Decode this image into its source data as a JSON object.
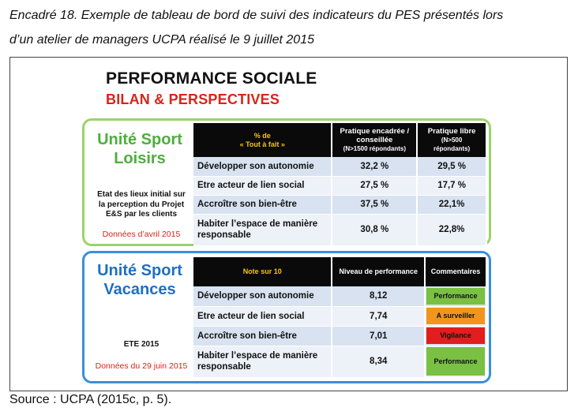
{
  "caption": {
    "line1": "Encadré 18. Exemple de tableau de bord de suivi des indicateurs du PES présentés lors",
    "line2": "d’un atelier de managers UCPA réalisé le 9 juillet 2015"
  },
  "slide": {
    "title": "PERFORMANCE SOCIALE",
    "subtitle": "BILAN & PERSPECTIVES"
  },
  "loisirs": {
    "unit_line1": "Unité Sport",
    "unit_line2": "Loisirs",
    "side_text": [
      "Etat des lieux initial sur",
      "la perception du Projet",
      "E&S par les clients"
    ],
    "date": "Données d’avril 2015",
    "header": {
      "col0": [
        "% de",
        "« Tout à fait »"
      ],
      "col1": [
        "Pratique encadrée /",
        "conseillée",
        "(N>1500 répondants)"
      ],
      "col2": [
        "Pratique libre",
        "(N>500",
        "répondants)"
      ]
    },
    "rows": [
      {
        "label": "Développer son autonomie",
        "a": "32,2 %",
        "b": "29,5 %"
      },
      {
        "label": "Etre acteur de lien social",
        "a": "27,5 %",
        "b": "17,7 %"
      },
      {
        "label": "Accroître son bien-être",
        "a": "37,5 %",
        "b": "22,1%"
      },
      {
        "label": "Habiter l’espace de manière responsable",
        "a": "30,8 %",
        "b": "22,8%"
      }
    ]
  },
  "vacances": {
    "unit_line1": "Unité Sport",
    "unit_line2": "Vacances",
    "side_text": [
      "ETE 2015"
    ],
    "date": "Données du 29 juin 2015",
    "header": {
      "col0": "Note sur 10",
      "col1": "Niveau de performance",
      "col2": "Commentaires"
    },
    "rows": [
      {
        "label": "Développer son autonomie",
        "score": "8,12",
        "comment": "Performance",
        "color": "#79c043"
      },
      {
        "label": "Etre acteur de lien social",
        "score": "7,74",
        "comment": "A surveiller",
        "color": "#f2951f"
      },
      {
        "label": "Accroître son bien-être",
        "score": "7,01",
        "comment": "Vigilance",
        "color": "#e21d1d"
      },
      {
        "label": "Habiter l’espace de manière responsable",
        "score": "8,34",
        "comment": "Performance",
        "color": "#79c043"
      }
    ]
  },
  "source": "Source : UCPA (2015c, p. 5)."
}
